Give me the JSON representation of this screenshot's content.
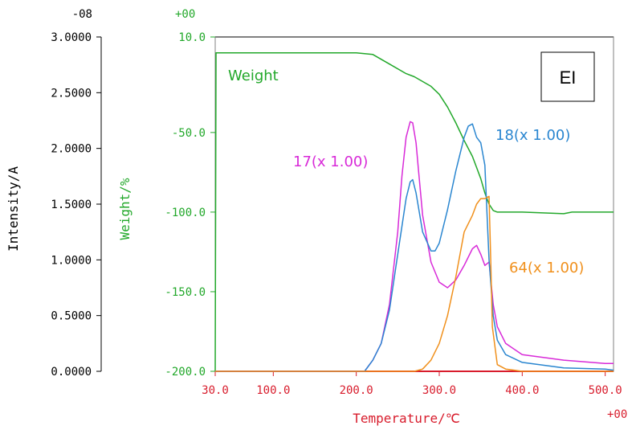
{
  "colors": {
    "weight": "#22a82a",
    "temperature": "#d81c2c",
    "s17": "#d82ad8",
    "s18": "#2a86d0",
    "s64": "#f0901c",
    "axis": "#000000",
    "frame": "#808080"
  },
  "chart_data": {
    "type": "line",
    "xlabel": "Temperature/℃",
    "x_exponent": "+00",
    "xlim": [
      30,
      510
    ],
    "x_ticks": [
      "30.0",
      "100.0",
      "200.0",
      "300.0",
      "400.0",
      "500.0"
    ],
    "y_left": {
      "label": "Intensity/A",
      "exponent": "-08",
      "lim": [
        0,
        3.0
      ],
      "ticks": [
        "3.0000",
        "2.5000",
        "2.0000",
        "1.5000",
        "1.0000",
        "0.5000",
        "0.0000"
      ]
    },
    "y_right": {
      "label": "Weight/%",
      "exponent": "+00",
      "lim": [
        -200,
        10
      ],
      "ticks": [
        "10.0",
        "-50.0",
        "-100.0",
        "-150.0",
        "-200.0"
      ]
    },
    "legend_box": "EI",
    "series": [
      {
        "name": "Weight",
        "label": "Weight",
        "axis": "right",
        "x": [
          30,
          31,
          32,
          50,
          100,
          150,
          200,
          220,
          240,
          260,
          270,
          290,
          300,
          310,
          320,
          330,
          340,
          345,
          350,
          355,
          360,
          365,
          370,
          400,
          450,
          460,
          500,
          510
        ],
        "y": [
          -200,
          0,
          0,
          0,
          0,
          0,
          0,
          -1,
          -7,
          -13,
          -15,
          -21,
          -26,
          -34,
          -44,
          -55,
          -65,
          -72,
          -79,
          -88,
          -95,
          -99,
          -100,
          -100,
          -101,
          -100,
          -100,
          -100
        ]
      },
      {
        "name": "17",
        "label": "17(x 1.00)",
        "axis": "left",
        "x": [
          30,
          200,
          210,
          220,
          230,
          240,
          250,
          255,
          260,
          265,
          268,
          272,
          275,
          280,
          290,
          300,
          310,
          320,
          330,
          340,
          345,
          350,
          355,
          360,
          365,
          370,
          380,
          400,
          450,
          500,
          510
        ],
        "y": [
          0,
          0,
          0,
          0.1,
          0.25,
          0.6,
          1.25,
          1.75,
          2.1,
          2.24,
          2.23,
          2.05,
          1.8,
          1.4,
          0.98,
          0.8,
          0.75,
          0.82,
          0.95,
          1.1,
          1.13,
          1.05,
          0.95,
          0.98,
          0.6,
          0.4,
          0.25,
          0.15,
          0.1,
          0.07,
          0.07
        ]
      },
      {
        "name": "18",
        "label": "18(x 1.00)",
        "axis": "left",
        "x": [
          30,
          200,
          210,
          220,
          230,
          240,
          250,
          260,
          265,
          268,
          272,
          280,
          290,
          295,
          300,
          310,
          320,
          330,
          335,
          340,
          345,
          350,
          355,
          360,
          365,
          370,
          380,
          400,
          450,
          500,
          510
        ],
        "y": [
          0,
          0,
          0,
          0.1,
          0.25,
          0.55,
          1.05,
          1.55,
          1.7,
          1.72,
          1.6,
          1.25,
          1.08,
          1.08,
          1.15,
          1.45,
          1.8,
          2.1,
          2.2,
          2.22,
          2.1,
          2.05,
          1.85,
          1.0,
          0.5,
          0.28,
          0.15,
          0.08,
          0.03,
          0.02,
          0.01
        ]
      },
      {
        "name": "64",
        "label": "64(x 1.00)",
        "axis": "left",
        "x": [
          30,
          270,
          280,
          290,
          300,
          310,
          320,
          330,
          340,
          345,
          350,
          355,
          360,
          362,
          364,
          370,
          380,
          400,
          500,
          510
        ],
        "y": [
          0,
          0,
          0.02,
          0.1,
          0.25,
          0.5,
          0.85,
          1.25,
          1.4,
          1.5,
          1.55,
          1.55,
          1.57,
          1.0,
          0.4,
          0.06,
          0.02,
          0.0,
          0.0,
          0.0
        ]
      }
    ]
  }
}
